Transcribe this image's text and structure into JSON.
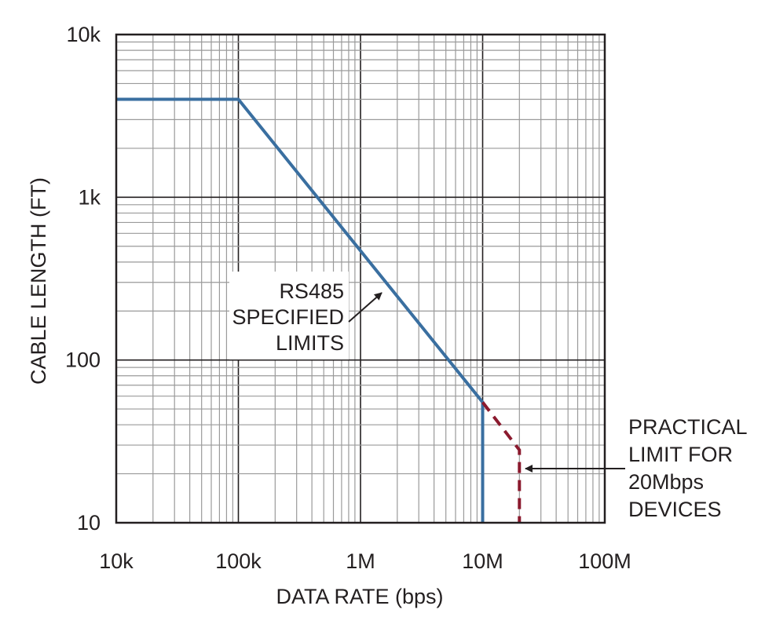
{
  "chart_data": {
    "type": "line",
    "title": "",
    "xlabel": "DATA RATE (bps)",
    "ylabel": "CABLE LENGTH (FT)",
    "x_scale": "log",
    "y_scale": "log",
    "xlim": [
      10000,
      100000000
    ],
    "ylim": [
      10,
      10000
    ],
    "grid": true,
    "x_ticks": [
      {
        "value": 10000,
        "label": "10k"
      },
      {
        "value": 100000,
        "label": "100k"
      },
      {
        "value": 1000000,
        "label": "1M"
      },
      {
        "value": 10000000,
        "label": "10M"
      },
      {
        "value": 100000000,
        "label": "100M"
      }
    ],
    "y_ticks": [
      {
        "value": 10,
        "label": "10"
      },
      {
        "value": 100,
        "label": "100"
      },
      {
        "value": 1000,
        "label": "1k"
      },
      {
        "value": 10000,
        "label": "10k"
      }
    ],
    "series": [
      {
        "color": "#3a6fa0",
        "style": "solid",
        "points": [
          [
            10000,
            4000
          ],
          [
            100000,
            4000
          ],
          [
            10000000,
            55
          ],
          [
            10000000,
            10
          ]
        ]
      },
      {
        "color": "#8b1a2e",
        "style": "dashed",
        "points": [
          [
            10000000,
            55
          ],
          [
            20000000,
            28
          ],
          [
            20000000,
            10
          ]
        ]
      }
    ],
    "annotations": [
      {
        "lines": [
          "RS485",
          "SPECIFIED",
          "LIMITS"
        ],
        "target": [
          1700000,
          320
        ]
      },
      {
        "lines": [
          "PRACTICAL",
          "LIMIT FOR",
          "20Mbps",
          "DEVICES"
        ],
        "target": [
          20000000,
          18
        ]
      }
    ]
  },
  "colors": {
    "frame": "#231f20",
    "grid": "#9a9a9a",
    "background": "#ffffff"
  }
}
